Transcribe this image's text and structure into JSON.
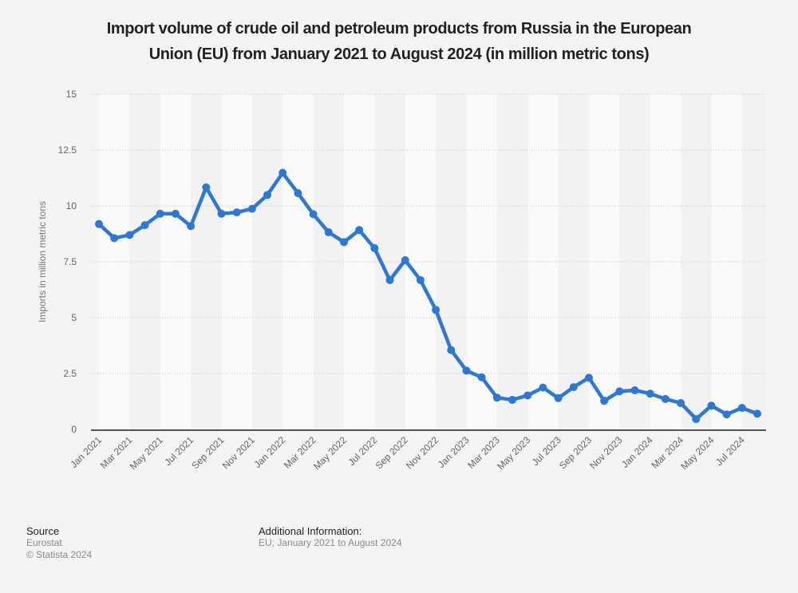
{
  "title_lines": [
    "Import volume of crude oil and petroleum products from Russia in the European",
    "Union (EU) from January 2021 to August 2024 (in million metric tons)"
  ],
  "footer": {
    "source_heading": "Source",
    "source_name": "Eurostat",
    "copyright": "© Statista 2024",
    "additional_heading": "Additional Information:",
    "additional_text": "EU; January 2021 to August 2024"
  },
  "colors": {
    "line": "#2c78d4",
    "band_light": "#fafafa",
    "band_dark": "#f2f2f2",
    "grid": "#c8c8c8",
    "axis": "#555555",
    "tick_text": "#666666"
  },
  "chart_data": {
    "type": "line",
    "title": "Import volume of crude oil and petroleum products from Russia in the European Union (EU) from January 2021 to August 2024 (in million metric tons)",
    "xlabel": "",
    "ylabel": "Imports in million metric tons",
    "ylim": [
      0,
      15
    ],
    "yticks": [
      0,
      2.5,
      5,
      7.5,
      10,
      12.5,
      15
    ],
    "ytick_labels": [
      "0",
      "2.5",
      "5",
      "7.5",
      "10",
      "12.5",
      "15"
    ],
    "grid": true,
    "legend": "none",
    "x": [
      "Jan 2021",
      "Feb 2021",
      "Mar 2021",
      "Apr 2021",
      "May 2021",
      "Jun 2021",
      "Jul 2021",
      "Aug 2021",
      "Sep 2021",
      "Oct 2021",
      "Nov 2021",
      "Dec 2021",
      "Jan 2022",
      "Feb 2022",
      "Mar 2022",
      "Apr 2022",
      "May 2022",
      "Jun 2022",
      "Jul 2022",
      "Aug 2022",
      "Sep 2022",
      "Oct 2022",
      "Nov 2022",
      "Dec 2022",
      "Jan 2023",
      "Feb 2023",
      "Mar 2023",
      "Apr 2023",
      "May 2023",
      "Jun 2023",
      "Jul 2023",
      "Aug 2023",
      "Sep 2023",
      "Oct 2023",
      "Nov 2023",
      "Dec 2023",
      "Jan 2024",
      "Feb 2024",
      "Mar 2024",
      "Apr 2024",
      "May 2024",
      "Jun 2024",
      "Jul 2024",
      "Aug 2024"
    ],
    "xtick_labels": [
      "Jan 2021",
      "Mar 2021",
      "May 2021",
      "Jul 2021",
      "Sep 2021",
      "Nov 2021",
      "Jan 2022",
      "Mar 2022",
      "May 2022",
      "Jul 2022",
      "Sep 2022",
      "Nov 2022",
      "Jan 2023",
      "Mar 2023",
      "May 2023",
      "Jul 2023",
      "Sep 2023",
      "Nov 2023",
      "Jan 2024",
      "Mar 2024",
      "May 2024",
      "Jul 2024"
    ],
    "series": [
      {
        "name": "Imports",
        "values": [
          9.19,
          8.56,
          8.7,
          9.14,
          9.65,
          9.65,
          9.1,
          10.83,
          9.65,
          9.71,
          9.87,
          10.49,
          11.48,
          10.57,
          9.63,
          8.82,
          8.38,
          8.92,
          8.11,
          6.68,
          7.57,
          6.68,
          5.35,
          3.55,
          2.63,
          2.33,
          1.42,
          1.32,
          1.52,
          1.87,
          1.4,
          1.89,
          2.31,
          1.28,
          1.7,
          1.75,
          1.6,
          1.36,
          1.18,
          0.46,
          1.06,
          0.67,
          0.96,
          0.7
        ]
      }
    ]
  }
}
